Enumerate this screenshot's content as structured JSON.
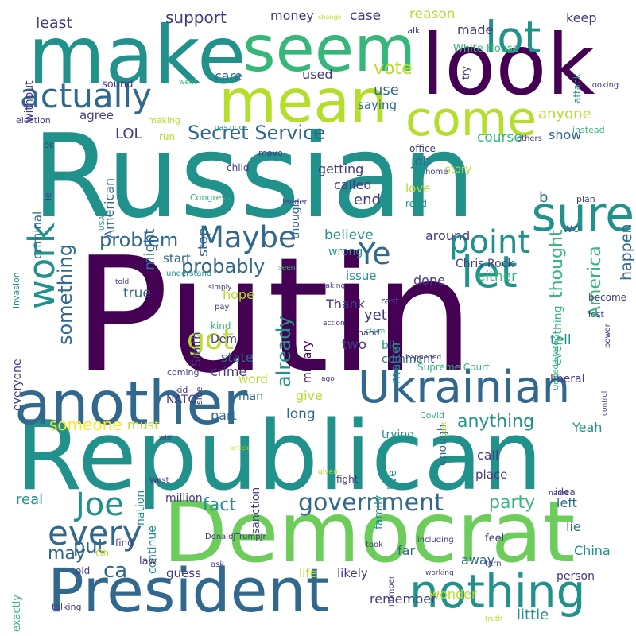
{
  "title": "",
  "palette": {
    "c1": "#440154",
    "c2": "#443983",
    "c3": "#31688e",
    "c4": "#21918c",
    "c5": "#35b779",
    "c6": "#6ccd5a",
    "c7": "#b5de2b",
    "c8": "#fde725"
  },
  "words": [
    {
      "text": "Putin",
      "color": "#440154"
    },
    {
      "text": "Russian",
      "color": "#21918c"
    },
    {
      "text": "Republican",
      "color": "#21918c"
    },
    {
      "text": "Democrat",
      "color": "#6ccd5a"
    },
    {
      "text": "President",
      "color": "#31688e"
    },
    {
      "text": "make",
      "color": "#21918c"
    },
    {
      "text": "look",
      "color": "#440154"
    },
    {
      "text": "seem",
      "color": "#35b779"
    },
    {
      "text": "mean",
      "color": "#b5de2b"
    },
    {
      "text": "another",
      "color": "#31688e"
    },
    {
      "text": "Ukrainian",
      "color": "#31688e"
    },
    {
      "text": "nothing",
      "color": "#21918c"
    },
    {
      "text": "come",
      "color": "#b5de2b"
    },
    {
      "text": "actually",
      "color": "#31688e"
    },
    {
      "text": "lot",
      "color": "#21918c"
    },
    {
      "text": "sure",
      "color": "#21918c"
    },
    {
      "text": "let",
      "color": "#21918c"
    },
    {
      "text": "work",
      "color": "#21918c"
    },
    {
      "text": "point",
      "color": "#21918c"
    },
    {
      "text": "Ye",
      "color": "#31688e"
    },
    {
      "text": "Maybe",
      "color": "#31688e"
    },
    {
      "text": "got",
      "color": "#b5de2b"
    },
    {
      "text": "Joe",
      "color": "#21918c"
    },
    {
      "text": "every",
      "color": "#31688e"
    },
    {
      "text": "government",
      "color": "#31688e"
    },
    {
      "text": "Secret Service",
      "color": "#31688e"
    },
    {
      "text": "something",
      "color": "#31688e"
    },
    {
      "text": "probably",
      "color": "#31688e"
    },
    {
      "text": "problem",
      "color": "#31688e"
    },
    {
      "text": "already",
      "color": "#21918c"
    },
    {
      "text": "America",
      "color": "#35b779"
    },
    {
      "text": "thought",
      "color": "#35b779"
    },
    {
      "text": "fact",
      "color": "#21918c"
    },
    {
      "text": "party",
      "color": "#35b779"
    },
    {
      "text": "put",
      "color": "#31688e"
    },
    {
      "text": "ca",
      "color": "#31688e"
    },
    {
      "text": "may",
      "color": "#31688e"
    },
    {
      "text": "someone",
      "color": "#fde725"
    },
    {
      "text": "anything",
      "color": "#21918c"
    },
    {
      "text": "support",
      "color": "#443983"
    },
    {
      "text": "least",
      "color": "#443983"
    },
    {
      "text": "money",
      "color": "#443983"
    },
    {
      "text": "case",
      "color": "#443983"
    },
    {
      "text": "reason",
      "color": "#b5de2b"
    },
    {
      "text": "made",
      "color": "#443983"
    },
    {
      "text": "keep",
      "color": "#443983"
    },
    {
      "text": "White House",
      "color": "#35b779"
    },
    {
      "text": "vote",
      "color": "#b5de2b"
    },
    {
      "text": "care",
      "color": "#31688e"
    },
    {
      "text": "used",
      "color": "#443983"
    },
    {
      "text": "use",
      "color": "#31688e"
    },
    {
      "text": "saying",
      "color": "#31688e"
    },
    {
      "text": "anyone",
      "color": "#b5de2b"
    },
    {
      "text": "agree",
      "color": "#443983"
    },
    {
      "text": "LOL",
      "color": "#443983"
    },
    {
      "text": "American",
      "color": "#31688e"
    },
    {
      "text": "course",
      "color": "#35b779"
    },
    {
      "text": "show",
      "color": "#31688e"
    },
    {
      "text": "happen",
      "color": "#31688e"
    },
    {
      "text": "job",
      "color": "#31688e"
    },
    {
      "text": "getting",
      "color": "#443983"
    },
    {
      "text": "story",
      "color": "#b5de2b"
    },
    {
      "text": "called",
      "color": "#443983"
    },
    {
      "text": "end",
      "color": "#443983"
    },
    {
      "text": "b",
      "color": "#31688e"
    },
    {
      "text": "love",
      "color": "#b5de2b"
    },
    {
      "text": "read",
      "color": "#21918c"
    },
    {
      "text": "might",
      "color": "#31688e"
    },
    {
      "text": "stop",
      "color": "#31688e"
    },
    {
      "text": "though",
      "color": "#31688e"
    },
    {
      "text": "believe",
      "color": "#21918c"
    },
    {
      "text": "around",
      "color": "#443983"
    },
    {
      "text": "wo",
      "color": "#31688e"
    },
    {
      "text": "wrong",
      "color": "#21918c"
    },
    {
      "text": "start",
      "color": "#31688e"
    },
    {
      "text": "either",
      "color": "#35b779"
    },
    {
      "text": "issue",
      "color": "#21918c"
    },
    {
      "text": "done",
      "color": "#443983"
    },
    {
      "text": "true",
      "color": "#31688e"
    },
    {
      "text": "hope",
      "color": "#b5de2b"
    },
    {
      "text": "Thank",
      "color": "#443983"
    },
    {
      "text": "yet",
      "color": "#443983"
    },
    {
      "text": "matter",
      "color": "#21918c"
    },
    {
      "text": "tell",
      "color": "#21918c"
    },
    {
      "text": "two",
      "color": "#443983"
    },
    {
      "text": "big",
      "color": "#21918c"
    },
    {
      "text": "Dem",
      "color": "#443983"
    },
    {
      "text": "state",
      "color": "#31688e"
    },
    {
      "text": "crime",
      "color": "#443983"
    },
    {
      "text": "give",
      "color": "#b5de2b"
    },
    {
      "text": "long",
      "color": "#31688e"
    },
    {
      "text": "part",
      "color": "#31688e"
    },
    {
      "text": "must",
      "color": "#b5de2b"
    },
    {
      "text": "NATO",
      "color": "#443983"
    },
    {
      "text": "man",
      "color": "#31688e"
    },
    {
      "text": "word",
      "color": "#b5de2b"
    },
    {
      "text": "enough",
      "color": "#31688e"
    },
    {
      "text": "liberal",
      "color": "#443983"
    },
    {
      "text": "Yeah",
      "color": "#21918c"
    },
    {
      "text": "call",
      "color": "#443983"
    },
    {
      "text": "place",
      "color": "#443983"
    },
    {
      "text": "left",
      "color": "#31688e"
    },
    {
      "text": "lie",
      "color": "#31688e"
    },
    {
      "text": "China",
      "color": "#21918c"
    },
    {
      "text": "far",
      "color": "#31688e"
    },
    {
      "text": "away",
      "color": "#31688e"
    },
    {
      "text": "guess",
      "color": "#443983"
    },
    {
      "text": "life",
      "color": "#b5de2b"
    },
    {
      "text": "likely",
      "color": "#443983"
    },
    {
      "text": "wonder",
      "color": "#b5de2b"
    },
    {
      "text": "remember",
      "color": "#443983"
    },
    {
      "text": "little",
      "color": "#21918c"
    },
    {
      "text": "real",
      "color": "#21918c"
    },
    {
      "text": "million",
      "color": "#443983"
    },
    {
      "text": "continue",
      "color": "#21918c"
    },
    {
      "text": "family",
      "color": "#21918c"
    },
    {
      "text": "live",
      "color": "#21918c"
    },
    {
      "text": "fight",
      "color": "#443983"
    },
    {
      "text": "everyone",
      "color": "#443983"
    },
    {
      "text": "criminal",
      "color": "#31688e"
    },
    {
      "text": "everything",
      "color": "#35b779"
    },
    {
      "text": "comment",
      "color": "#31688e"
    },
    {
      "text": "Chris Rock",
      "color": "#443983"
    },
    {
      "text": "Smith",
      "color": "#443983"
    },
    {
      "text": "kind",
      "color": "#35b779"
    },
    {
      "text": "person",
      "color": "#443983"
    },
    {
      "text": "idea",
      "color": "#443983"
    },
    {
      "text": "feel",
      "color": "#443983"
    },
    {
      "text": "sanction",
      "color": "#443983"
    },
    {
      "text": "nation",
      "color": "#21918c"
    },
    {
      "text": "military",
      "color": "#440154"
    },
    {
      "text": "Supreme Court",
      "color": "#35b779"
    },
    {
      "text": "trying",
      "color": "#21918c"
    },
    {
      "text": "without",
      "color": "#443983"
    },
    {
      "text": "sound",
      "color": "#443983"
    },
    {
      "text": "talk",
      "color": "#443983"
    },
    {
      "text": "change",
      "color": "#b5de2b"
    },
    {
      "text": "attack",
      "color": "#21918c"
    },
    {
      "text": "looking",
      "color": "#443983"
    },
    {
      "text": "try",
      "color": "#443983"
    },
    {
      "text": "went",
      "color": "#35b779"
    },
    {
      "text": "making",
      "color": "#b5de2b"
    },
    {
      "text": "election",
      "color": "#443983"
    },
    {
      "text": "gas price",
      "color": "#21918c"
    },
    {
      "text": "OK",
      "color": "#443983"
    },
    {
      "text": "run",
      "color": "#b5de2b"
    },
    {
      "text": "others",
      "color": "#443983"
    },
    {
      "text": "instead",
      "color": "#35b779"
    },
    {
      "text": "office",
      "color": "#443983"
    },
    {
      "text": "child",
      "color": "#443983"
    },
    {
      "text": "move",
      "color": "#443983"
    },
    {
      "text": "home",
      "color": "#443983"
    },
    {
      "text": "Congress",
      "color": "#35b779"
    },
    {
      "text": "leader",
      "color": "#443983"
    },
    {
      "text": "plan",
      "color": "#443983"
    },
    {
      "text": "le",
      "color": "#443983"
    },
    {
      "text": "USA",
      "color": "#21918c"
    },
    {
      "text": "invasion",
      "color": "#21918c"
    },
    {
      "text": "understand",
      "color": "#21918c"
    },
    {
      "text": "seen",
      "color": "#35b779"
    },
    {
      "text": "taking",
      "color": "#443983"
    },
    {
      "text": "told",
      "color": "#443983"
    },
    {
      "text": "simply",
      "color": "#443983"
    },
    {
      "text": "pay",
      "color": "#443983"
    },
    {
      "text": "action",
      "color": "#443983"
    },
    {
      "text": "claim",
      "color": "#35b779"
    },
    {
      "text": "rest",
      "color": "#443983"
    },
    {
      "text": "become",
      "color": "#443983"
    },
    {
      "text": "lost",
      "color": "#443983"
    },
    {
      "text": "power",
      "color": "#443983"
    },
    {
      "text": "United State",
      "color": "#35b779"
    },
    {
      "text": "hand",
      "color": "#443983"
    },
    {
      "text": "happened",
      "color": "#443983"
    },
    {
      "text": "coming",
      "color": "#443983"
    },
    {
      "text": "ago",
      "color": "#443983"
    },
    {
      "text": "kid",
      "color": "#443983"
    },
    {
      "text": "side",
      "color": "#443983"
    },
    {
      "text": "control",
      "color": "#443983"
    },
    {
      "text": "Covid",
      "color": "#35b779"
    },
    {
      "text": "post",
      "color": "#b5de2b"
    },
    {
      "text": "win",
      "color": "#443983"
    },
    {
      "text": "article",
      "color": "#b5de2b"
    },
    {
      "text": "given",
      "color": "#b5de2b"
    },
    {
      "text": "West",
      "color": "#443983"
    },
    {
      "text": "DonaldJTrumpJr",
      "color": "#443983"
    },
    {
      "text": "name",
      "color": "#443983"
    },
    {
      "text": "find",
      "color": "#443983"
    },
    {
      "text": "law",
      "color": "#443983"
    },
    {
      "text": "Oh",
      "color": "#b5de2b"
    },
    {
      "text": "old",
      "color": "#443983"
    },
    {
      "text": "ask",
      "color": "#443983"
    },
    {
      "text": "took",
      "color": "#443983"
    },
    {
      "text": "including",
      "color": "#443983"
    },
    {
      "text": "turn",
      "color": "#443983"
    },
    {
      "text": "working",
      "color": "#443983"
    },
    {
      "text": "number",
      "color": "#443983"
    },
    {
      "text": "exactly",
      "color": "#35b779"
    },
    {
      "text": "talking",
      "color": "#443983"
    },
    {
      "text": "truth",
      "color": "#b5de2b"
    }
  ]
}
